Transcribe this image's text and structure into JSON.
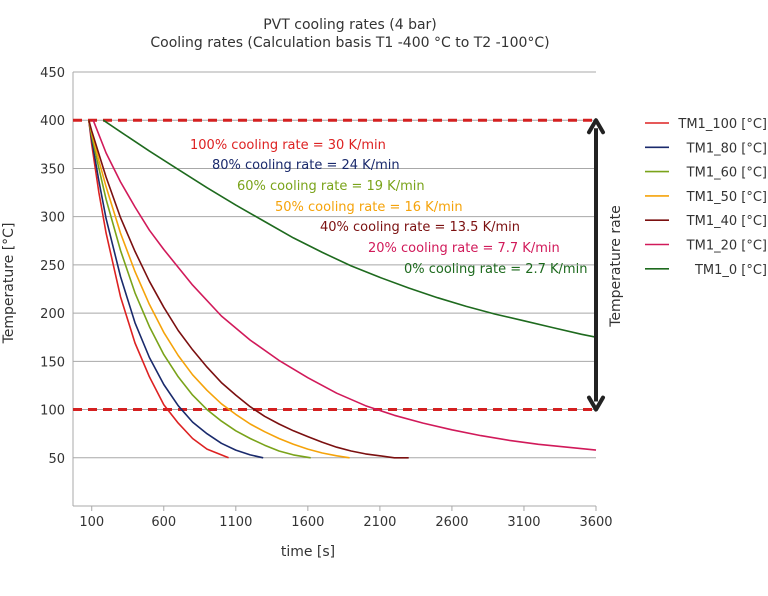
{
  "chart_data": {
    "type": "line",
    "title": "PVT cooling rates (4 bar)",
    "subtitle": "Cooling rates (Calculation basis T1 -400 °C to T2 -100°C)",
    "xlabel": "time [s]",
    "ylabel": "Temperature [°C]",
    "xlim": [
      -30,
      3600
    ],
    "ylim": [
      0,
      450
    ],
    "xticks": [
      100,
      600,
      1100,
      1600,
      2100,
      2600,
      3100,
      3600
    ],
    "yticks": [
      50,
      100,
      150,
      200,
      250,
      300,
      350,
      400,
      450
    ],
    "grid": "horizontal",
    "legend_position": "right",
    "right_annotation": "Temperature rate",
    "reference_lines": [
      400,
      100
    ],
    "series": [
      {
        "name": "TM1_100 [°C]",
        "color": "#dd2222",
        "x": [
          80,
          100,
          150,
          200,
          300,
          400,
          500,
          600,
          700,
          800,
          900,
          1050
        ],
        "y": [
          400,
          375,
          325,
          283,
          217,
          169,
          134,
          105,
          86,
          70,
          59,
          50
        ]
      },
      {
        "name": "TM1_80 [°C]",
        "color": "#1a2a6c",
        "x": [
          80,
          100,
          150,
          200,
          300,
          400,
          500,
          600,
          700,
          800,
          900,
          1000,
          1100,
          1200,
          1290
        ],
        "y": [
          400,
          380,
          337,
          298,
          238,
          190,
          154,
          126,
          104,
          87,
          75,
          65,
          58,
          53,
          50
        ]
      },
      {
        "name": "TM1_60 [°C]",
        "color": "#7aa31a",
        "x": [
          80,
          100,
          150,
          200,
          300,
          400,
          500,
          600,
          700,
          800,
          900,
          1000,
          1100,
          1200,
          1300,
          1400,
          1500,
          1620
        ],
        "y": [
          400,
          384,
          350,
          318,
          265,
          221,
          186,
          157,
          134,
          115,
          100,
          88,
          78,
          70,
          63,
          57,
          53,
          50
        ]
      },
      {
        "name": "TM1_50 [°C]",
        "color": "#f5a30a",
        "x": [
          80,
          100,
          150,
          200,
          300,
          400,
          500,
          600,
          700,
          800,
          900,
          1000,
          1100,
          1200,
          1300,
          1400,
          1500,
          1600,
          1700,
          1800,
          1890
        ],
        "y": [
          400,
          387,
          358,
          331,
          283,
          243,
          209,
          180,
          156,
          136,
          120,
          106,
          95,
          85,
          77,
          70,
          64,
          59,
          55,
          52,
          50
        ]
      },
      {
        "name": "TM1_40 [°C]",
        "color": "#7b1010",
        "x": [
          80,
          100,
          150,
          200,
          300,
          400,
          500,
          600,
          700,
          800,
          900,
          1000,
          1100,
          1200,
          1300,
          1400,
          1500,
          1600,
          1700,
          1800,
          1900,
          2000,
          2100,
          2200,
          2300
        ],
        "y": [
          400,
          389,
          365,
          341,
          299,
          264,
          233,
          206,
          182,
          162,
          144,
          128,
          115,
          103,
          93,
          85,
          78,
          72,
          66,
          61,
          57,
          54,
          52,
          50,
          50
        ]
      },
      {
        "name": "TM1_20 [°C]",
        "color": "#d11a5a",
        "x": [
          110,
          200,
          300,
          400,
          500,
          600,
          800,
          1000,
          1200,
          1400,
          1600,
          1800,
          2000,
          2200,
          2400,
          2600,
          2800,
          3000,
          3200,
          3400,
          3600
        ],
        "y": [
          400,
          366,
          336,
          310,
          286,
          266,
          229,
          197,
          172,
          151,
          133,
          117,
          104,
          94,
          86,
          79,
          73,
          68,
          64,
          61,
          58
        ]
      },
      {
        "name": "TM1_0 [°C]",
        "color": "#1e6a1e",
        "x": [
          180,
          300,
          500,
          700,
          900,
          1100,
          1300,
          1500,
          1700,
          1900,
          2100,
          2300,
          2500,
          2700,
          2900,
          3100,
          3300,
          3500,
          3600
        ],
        "y": [
          400,
          388,
          368,
          349,
          330,
          312,
          295,
          278,
          263,
          249,
          237,
          226,
          216,
          207,
          199,
          192,
          185,
          178,
          175
        ]
      }
    ],
    "annotations": [
      {
        "text": "100% cooling rate = 30 K/min",
        "color": "#dd2222"
      },
      {
        "text": "80% cooling rate = 24 K/min",
        "color": "#1a2a6c"
      },
      {
        "text": "60% cooling rate = 19 K/min",
        "color": "#7aa31a"
      },
      {
        "text": "50% cooling rate = 16 K/min",
        "color": "#f5a30a"
      },
      {
        "text": "40% cooling rate = 13.5 K/min",
        "color": "#7b1010"
      },
      {
        "text": "20% cooling rate = 7.7 K/min",
        "color": "#d11a5a"
      },
      {
        "text": "0% cooling rate = 2.7 K/min",
        "color": "#1e6a1e"
      }
    ]
  }
}
